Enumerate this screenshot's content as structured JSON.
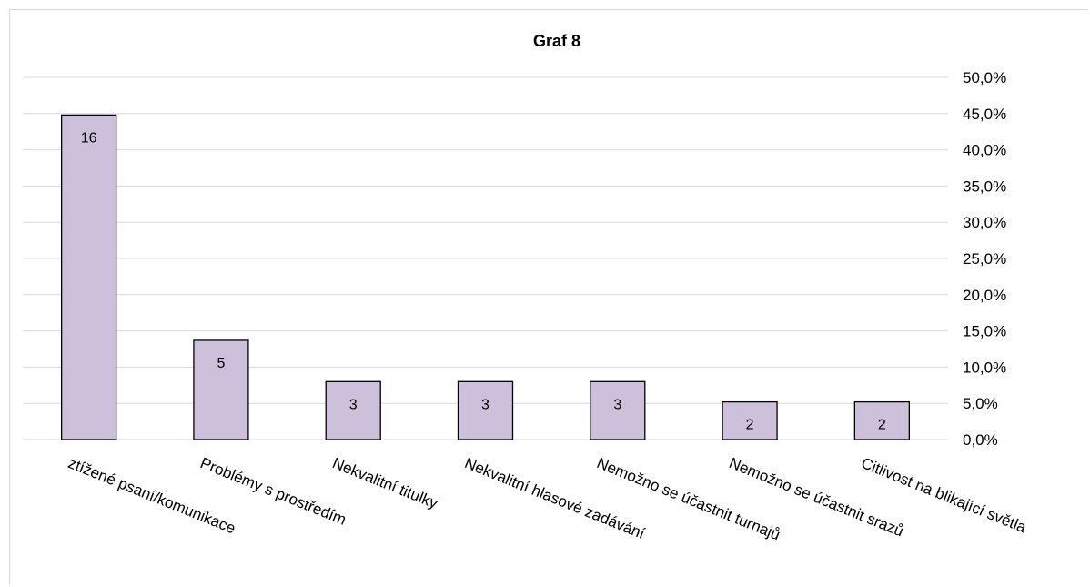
{
  "chart_data": {
    "type": "bar",
    "title": "Graf 8",
    "xlabel": "",
    "ylabel": "",
    "categories": [
      "ztížené psaní/komunikace",
      "Problémy s prostředím",
      "Nekvalitní titulky",
      "Nekvalitní hlasové zadávání",
      "Nemožno se účastnit turnajů",
      "Nemožno se účastnit srazů",
      "Citlivost na blikající světla"
    ],
    "values": [
      44.8,
      13.7,
      8.0,
      8.0,
      8.0,
      5.2,
      5.2
    ],
    "data_labels": [
      "16",
      "5",
      "3",
      "3",
      "3",
      "2",
      "2"
    ],
    "ylim": [
      0,
      50
    ],
    "y_ticks": [
      0,
      5,
      10,
      15,
      20,
      25,
      30,
      35,
      40,
      45,
      50
    ],
    "y_tick_labels": [
      "0,0%",
      "5,0%",
      "10,0%",
      "15,0%",
      "20,0%",
      "25,0%",
      "30,0%",
      "35,0%",
      "40,0%",
      "45,0%",
      "50,0%"
    ],
    "y_axis_position": "right",
    "grid": true,
    "legend": "none",
    "colors": {
      "bar_fill": "#ccc0da",
      "bar_stroke": "#000000",
      "grid": "#d9d9d9"
    }
  }
}
